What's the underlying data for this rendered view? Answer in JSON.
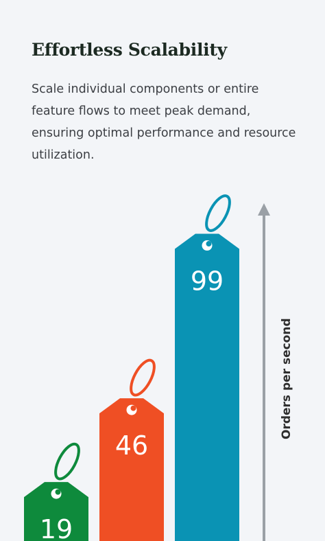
{
  "header": {
    "title": "Effortless Scalability",
    "description": "Scale individual components or entire feature flows to meet peak demand, ensuring optimal performance and resource utilization."
  },
  "colors": {
    "background": "#f3f5f8",
    "axis": "#9aa0a6",
    "label": "#2e2e2e"
  },
  "chart_data": {
    "type": "bar",
    "title": "",
    "xlabel": "",
    "ylabel": "Orders per second",
    "categories": [
      "",
      "",
      ""
    ],
    "values": [
      19,
      46,
      99
    ],
    "value_labels": [
      "19",
      "46",
      "99"
    ],
    "bar_colors": [
      "#0e8a3c",
      "#ef4f24",
      "#0a93b4"
    ],
    "bar_style": "price-tag with loop",
    "ylim": [
      0,
      100
    ],
    "grid": false,
    "legend": "none"
  }
}
